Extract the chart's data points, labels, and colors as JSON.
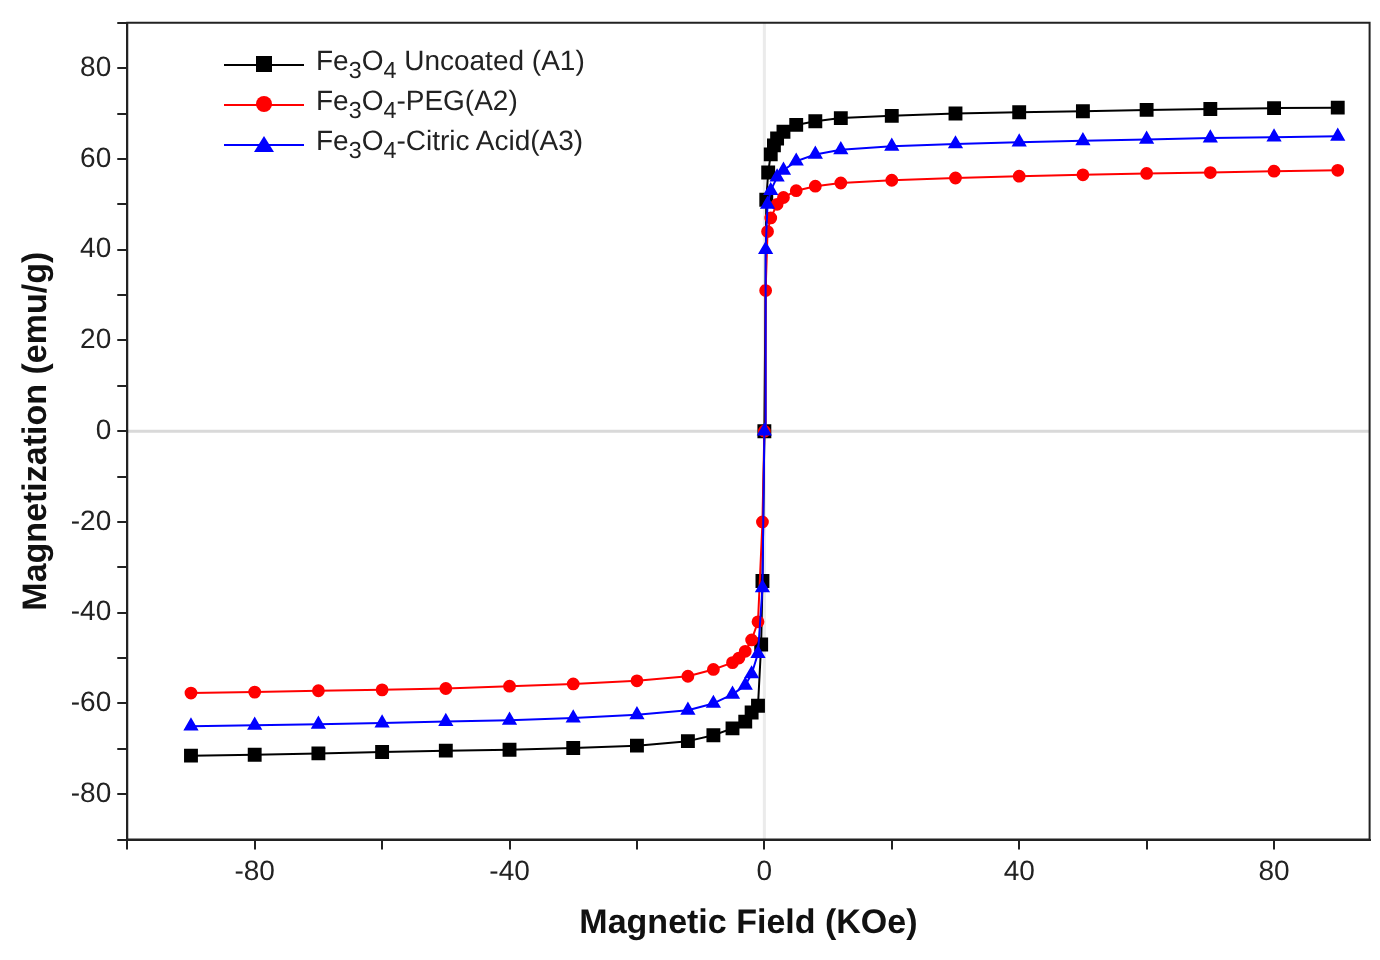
{
  "chart_data": {
    "type": "line",
    "xlabel": "Magnetic Field (KOe)",
    "ylabel": "Magnetization (emu/g)",
    "xlim": [
      -100,
      95
    ],
    "ylim": [
      -90,
      90
    ],
    "xticks": [
      {
        "value": -100,
        "label": null
      },
      -80,
      {
        "value": -60,
        "label": null
      },
      -40,
      {
        "value": -20,
        "label": null
      },
      0,
      {
        "value": 20,
        "label": null
      },
      40,
      {
        "value": 60,
        "label": null
      },
      80
    ],
    "yticks": [
      {
        "value": -90,
        "label": null
      },
      -80,
      {
        "value": -70,
        "label": null
      },
      -60,
      {
        "value": -50,
        "label": null
      },
      -40,
      {
        "value": -30,
        "label": null
      },
      -20,
      {
        "value": -10,
        "label": null
      },
      0,
      {
        "value": 10,
        "label": null
      },
      20,
      {
        "value": 30,
        "label": null
      },
      40,
      {
        "value": 50,
        "label": null
      },
      60,
      {
        "value": 70,
        "label": null
      },
      80,
      {
        "value": 90,
        "label": null
      }
    ],
    "grid": false,
    "legend": "top left",
    "line_style": "solid",
    "ref_lines": [
      {
        "axis": "x",
        "value": 0,
        "color": "#ebebeb"
      },
      {
        "axis": "y",
        "value": 0,
        "color": "#d9d9d9"
      }
    ],
    "series": [
      {
        "name": "Fe$_{3}$O$_{4}$ Uncoated (A1)",
        "color": "#000000",
        "marker": "square",
        "x": [
          -90,
          -80,
          -70,
          -60,
          -50,
          -40,
          -30,
          -20,
          -12,
          -8,
          -5,
          -3,
          -2,
          -1,
          -0.5,
          -0.3,
          0,
          0.3,
          0.6,
          1,
          1.5,
          2,
          3,
          5,
          8,
          12,
          20,
          30,
          40,
          50,
          60,
          70,
          80,
          90
        ],
        "values": [
          -71.5,
          -71.3,
          -71,
          -70.7,
          -70.4,
          -70.2,
          -69.8,
          -69.3,
          -68.3,
          -67,
          -65.5,
          -64,
          -62,
          -60.5,
          -47,
          -33,
          0,
          51,
          57,
          61,
          63,
          64.5,
          66,
          67.5,
          68.3,
          69,
          69.5,
          70,
          70.3,
          70.5,
          70.8,
          71,
          71.2,
          71.3
        ]
      },
      {
        "name": "Fe$_{3}$O$_{4}$-PEG(A2)",
        "color": "#ff0000",
        "marker": "circle",
        "x": [
          -90,
          -80,
          -70,
          -60,
          -50,
          -40,
          -30,
          -20,
          -12,
          -8,
          -5,
          -4,
          -3,
          -2,
          -1,
          -0.3,
          0,
          0.2,
          0.5,
          1,
          2,
          3,
          5,
          8,
          12,
          20,
          30,
          40,
          50,
          60,
          70,
          80,
          90
        ],
        "values": [
          -57.7,
          -57.5,
          -57.2,
          -57,
          -56.7,
          -56.2,
          -55.7,
          -55,
          -54,
          -52.5,
          -51,
          -50,
          -48.5,
          -46,
          -42,
          -20,
          0,
          31,
          44,
          47,
          50,
          51.5,
          53,
          54,
          54.7,
          55.3,
          55.8,
          56.2,
          56.5,
          56.8,
          57,
          57.3,
          57.5
        ]
      },
      {
        "name": "Fe$_{3}$O$_{4}$-Citric Acid(A3)",
        "color": "#0000ff",
        "marker": "triangle",
        "x": [
          -90,
          -80,
          -70,
          -60,
          -50,
          -40,
          -30,
          -20,
          -12,
          -8,
          -5,
          -3,
          -2,
          -1,
          -0.3,
          0,
          0.2,
          0.5,
          1,
          2,
          3,
          5,
          8,
          12,
          20,
          30,
          40,
          50,
          60,
          70,
          80,
          90
        ],
        "values": [
          -65,
          -64.8,
          -64.6,
          -64.3,
          -64,
          -63.7,
          -63.2,
          -62.5,
          -61.5,
          -60,
          -58,
          -56,
          -53.5,
          -49,
          -34.5,
          0,
          40,
          50,
          53,
          56,
          57.5,
          59.5,
          61,
          62,
          62.8,
          63.3,
          63.7,
          64,
          64.3,
          64.6,
          64.8,
          65
        ]
      }
    ]
  }
}
